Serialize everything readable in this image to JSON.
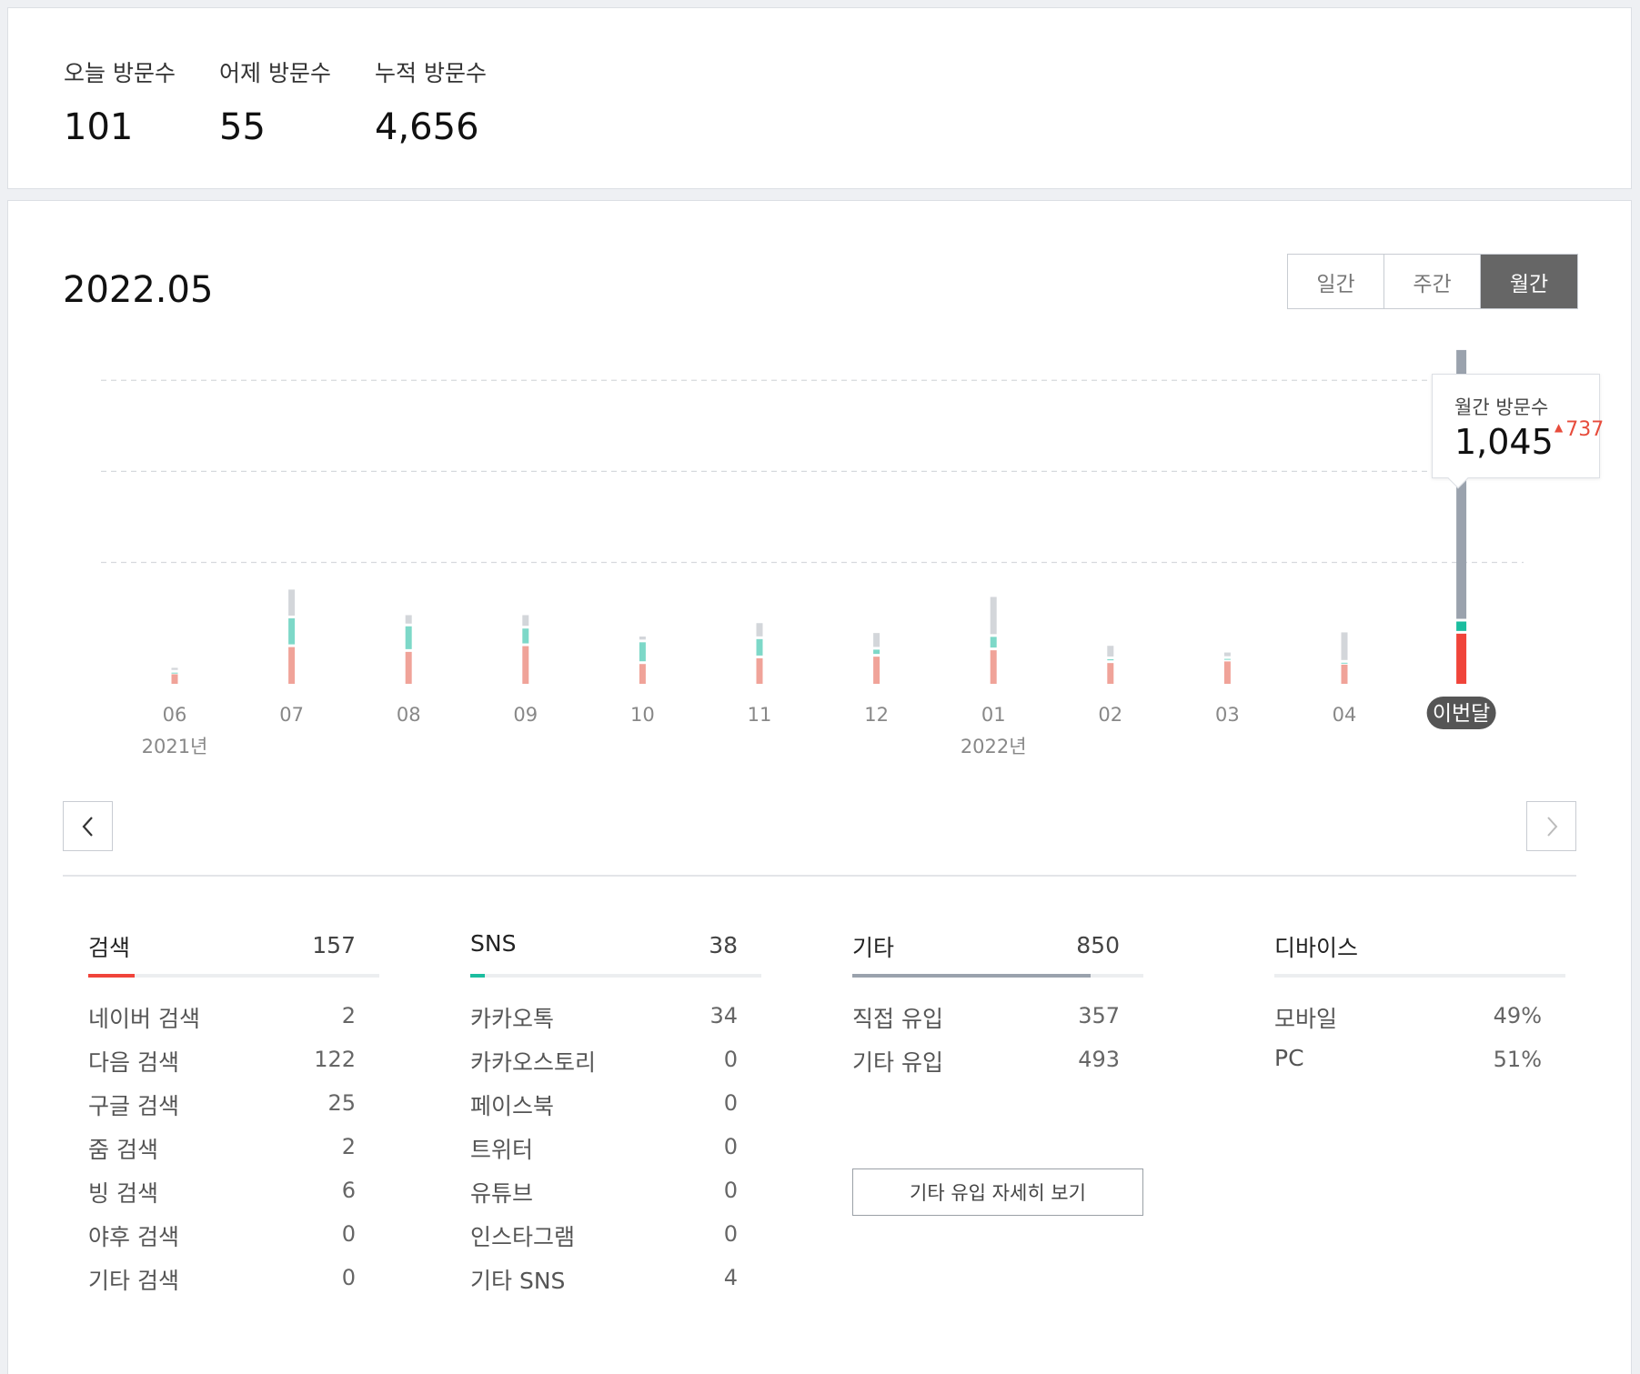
{
  "summary": {
    "today_label": "오늘 방문수",
    "today_value": "101",
    "yesterday_label": "어제 방문수",
    "yesterday_value": "55",
    "total_label": "누적 방문수",
    "total_value": "4,656"
  },
  "period_title": "2022.05",
  "toggle": {
    "daily": "일간",
    "weekly": "주간",
    "monthly": "월간",
    "active": "월간"
  },
  "tooltip": {
    "label": "월간 방문수",
    "value": "1,045",
    "delta": "737"
  },
  "colors": {
    "search": "#f0a399",
    "sns": "#7dd8c8",
    "other": "#d3d6da",
    "search_active": "#f0443a",
    "sns_active": "#1bbd9f",
    "other_active": "#9aa2ad",
    "active_badge": "#555555"
  },
  "chart_data": {
    "type": "bar",
    "stacked": true,
    "categories": [
      "06",
      "07",
      "08",
      "09",
      "10",
      "11",
      "12",
      "01",
      "02",
      "03",
      "04",
      "이번달"
    ],
    "year_labels": [
      {
        "text": "2021년",
        "category": "06"
      },
      {
        "text": "2022년",
        "category": "01"
      }
    ],
    "active_category": "이번달",
    "series": [
      {
        "key": "search",
        "values": [
          30,
          115,
          100,
          118,
          62,
          80,
          85,
          105,
          65,
          70,
          60,
          157
        ]
      },
      {
        "key": "sns",
        "values": [
          5,
          90,
          80,
          55,
          68,
          60,
          22,
          42,
          12,
          8,
          6,
          38
        ]
      },
      {
        "key": "other",
        "values": [
          15,
          90,
          35,
          42,
          18,
          50,
          52,
          125,
          42,
          20,
          95,
          850
        ]
      }
    ],
    "ylim": [
      0,
      1170
    ],
    "gridlines": [
      380,
      665,
      950
    ],
    "grid": true
  },
  "sections": {
    "search": {
      "title": "검색",
      "total": "157",
      "fill_fraction": 0.16,
      "rows": [
        {
          "label": "네이버 검색",
          "value": "2"
        },
        {
          "label": "다음 검색",
          "value": "122"
        },
        {
          "label": "구글 검색",
          "value": "25"
        },
        {
          "label": "줌 검색",
          "value": "2"
        },
        {
          "label": "빙 검색",
          "value": "6"
        },
        {
          "label": "야후 검색",
          "value": "0"
        },
        {
          "label": "기타 검색",
          "value": "0"
        }
      ]
    },
    "sns": {
      "title": "SNS",
      "total": "38",
      "fill_fraction": 0.05,
      "rows": [
        {
          "label": "카카오톡",
          "value": "34"
        },
        {
          "label": "카카오스토리",
          "value": "0"
        },
        {
          "label": "페이스북",
          "value": "0"
        },
        {
          "label": "트위터",
          "value": "0"
        },
        {
          "label": "유튜브",
          "value": "0"
        },
        {
          "label": "인스타그램",
          "value": "0"
        },
        {
          "label": "기타 SNS",
          "value": "4"
        }
      ]
    },
    "other": {
      "title": "기타",
      "total": "850",
      "fill_fraction": 0.82,
      "rows": [
        {
          "label": "직접 유입",
          "value": "357"
        },
        {
          "label": "기타 유입",
          "value": "493"
        }
      ],
      "detail_button": "기타 유입 자세히 보기"
    },
    "device": {
      "title": "디바이스",
      "rows": [
        {
          "label": "모바일",
          "value": "49%"
        },
        {
          "label": "PC",
          "value": "51%"
        }
      ]
    }
  }
}
